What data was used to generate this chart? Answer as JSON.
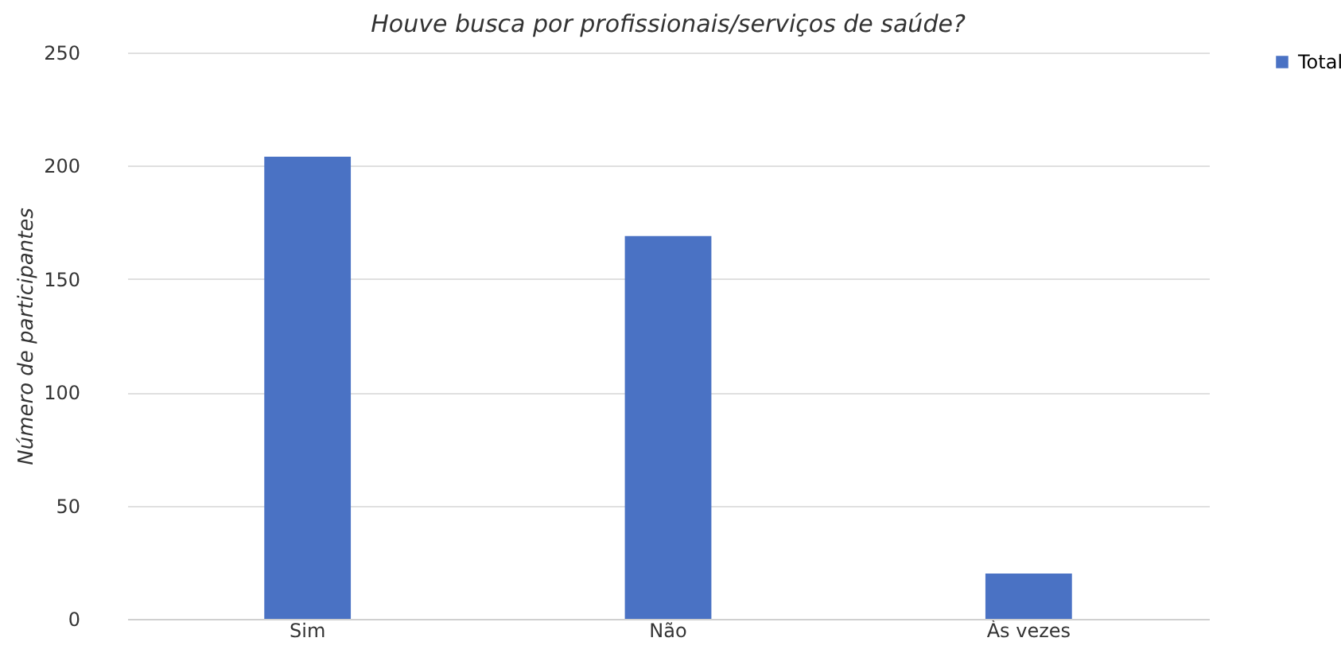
{
  "chart_data": {
    "type": "bar",
    "title": "Houve busca por profissionais/serviços de saúde?",
    "ylabel": "Número de participantes",
    "categories": [
      "Sim",
      "Não",
      "Às vezes"
    ],
    "series": [
      {
        "name": "Total",
        "color": "#4a72c4",
        "values": [
          204,
          169,
          20
        ]
      }
    ],
    "ylim": [
      0,
      250
    ],
    "yticks": [
      0,
      50,
      100,
      150,
      200,
      250
    ],
    "grid": "y",
    "legend": "right"
  }
}
